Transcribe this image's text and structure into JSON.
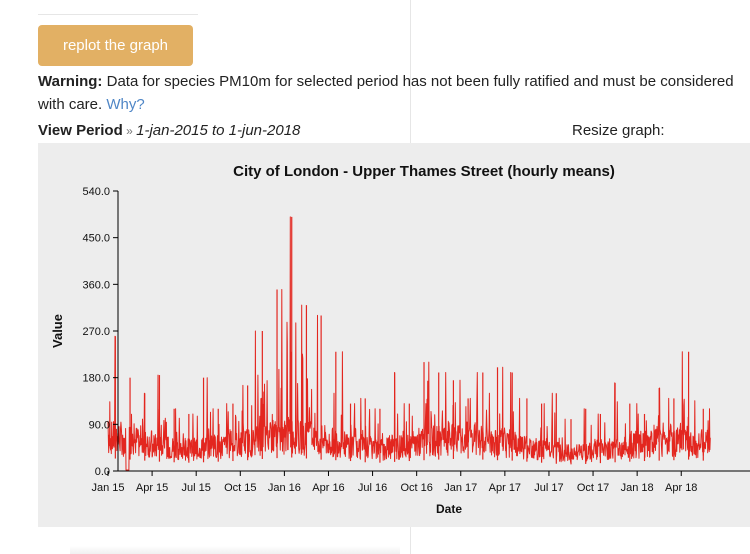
{
  "controls": {
    "replot_label": "replot the graph",
    "resize_label": "Resize graph:"
  },
  "warning": {
    "label": "Warning:",
    "text": " Data for species PM10m for selected period has not been fully ratified and must be considered with care. ",
    "link": "Why?"
  },
  "period": {
    "label": "View Period",
    "separator": " » ",
    "value": "1-jan-2015 to 1-jun-2018"
  },
  "colors": {
    "line": "#e3261f",
    "button": "#e2b064",
    "link": "#4f86c6"
  },
  "chart_data": {
    "type": "line",
    "title": "City of London - Upper Thames Street (hourly means)",
    "xlabel": "Date",
    "ylabel": "Value",
    "ylim": [
      0,
      540
    ],
    "yticks": [
      "0.0",
      "90.0",
      "180.0",
      "270.0",
      "360.0",
      "450.0",
      "540.0"
    ],
    "xticks": [
      "Jan 15",
      "Apr 15",
      "Jul 15",
      "Oct 15",
      "Jan 16",
      "Apr 16",
      "Jul 16",
      "Oct 16",
      "Jan 17",
      "Apr 17",
      "Jul 17",
      "Oct 17",
      "Jan 18",
      "Apr 18"
    ],
    "grid": false,
    "series": [
      {
        "color": "#e3261f",
        "x": [
          "2015-01",
          "2015-02",
          "2015-03",
          "2015-04",
          "2015-05",
          "2015-06",
          "2015-07",
          "2015-08",
          "2015-09",
          "2015-10",
          "2015-11",
          "2015-12",
          "2016-01",
          "2016-02",
          "2016-03",
          "2016-04",
          "2016-05",
          "2016-06",
          "2016-07",
          "2016-08",
          "2016-09",
          "2016-10",
          "2016-11",
          "2016-12",
          "2017-01",
          "2017-02",
          "2017-03",
          "2017-04",
          "2017-05",
          "2017-06",
          "2017-07",
          "2017-08",
          "2017-09",
          "2017-10",
          "2017-11",
          "2017-12",
          "2018-01",
          "2018-02",
          "2018-03",
          "2018-04",
          "2018-05"
        ],
        "peaks": [
          260,
          180,
          150,
          185,
          120,
          110,
          180,
          120,
          130,
          165,
          270,
          350,
          490,
          320,
          300,
          230,
          130,
          140,
          120,
          190,
          130,
          210,
          190,
          175,
          140,
          190,
          200,
          190,
          140,
          130,
          150,
          100,
          120,
          110,
          170,
          130,
          110,
          160,
          140,
          230,
          120
        ],
        "baseline": [
          60,
          55,
          50,
          45,
          42,
          40,
          42,
          45,
          48,
          52,
          58,
          62,
          65,
          60,
          55,
          52,
          48,
          42,
          40,
          44,
          48,
          52,
          55,
          58,
          60,
          55,
          52,
          50,
          45,
          40,
          35,
          32,
          34,
          38,
          42,
          45,
          48,
          50,
          52,
          55,
          50
        ]
      }
    ]
  }
}
